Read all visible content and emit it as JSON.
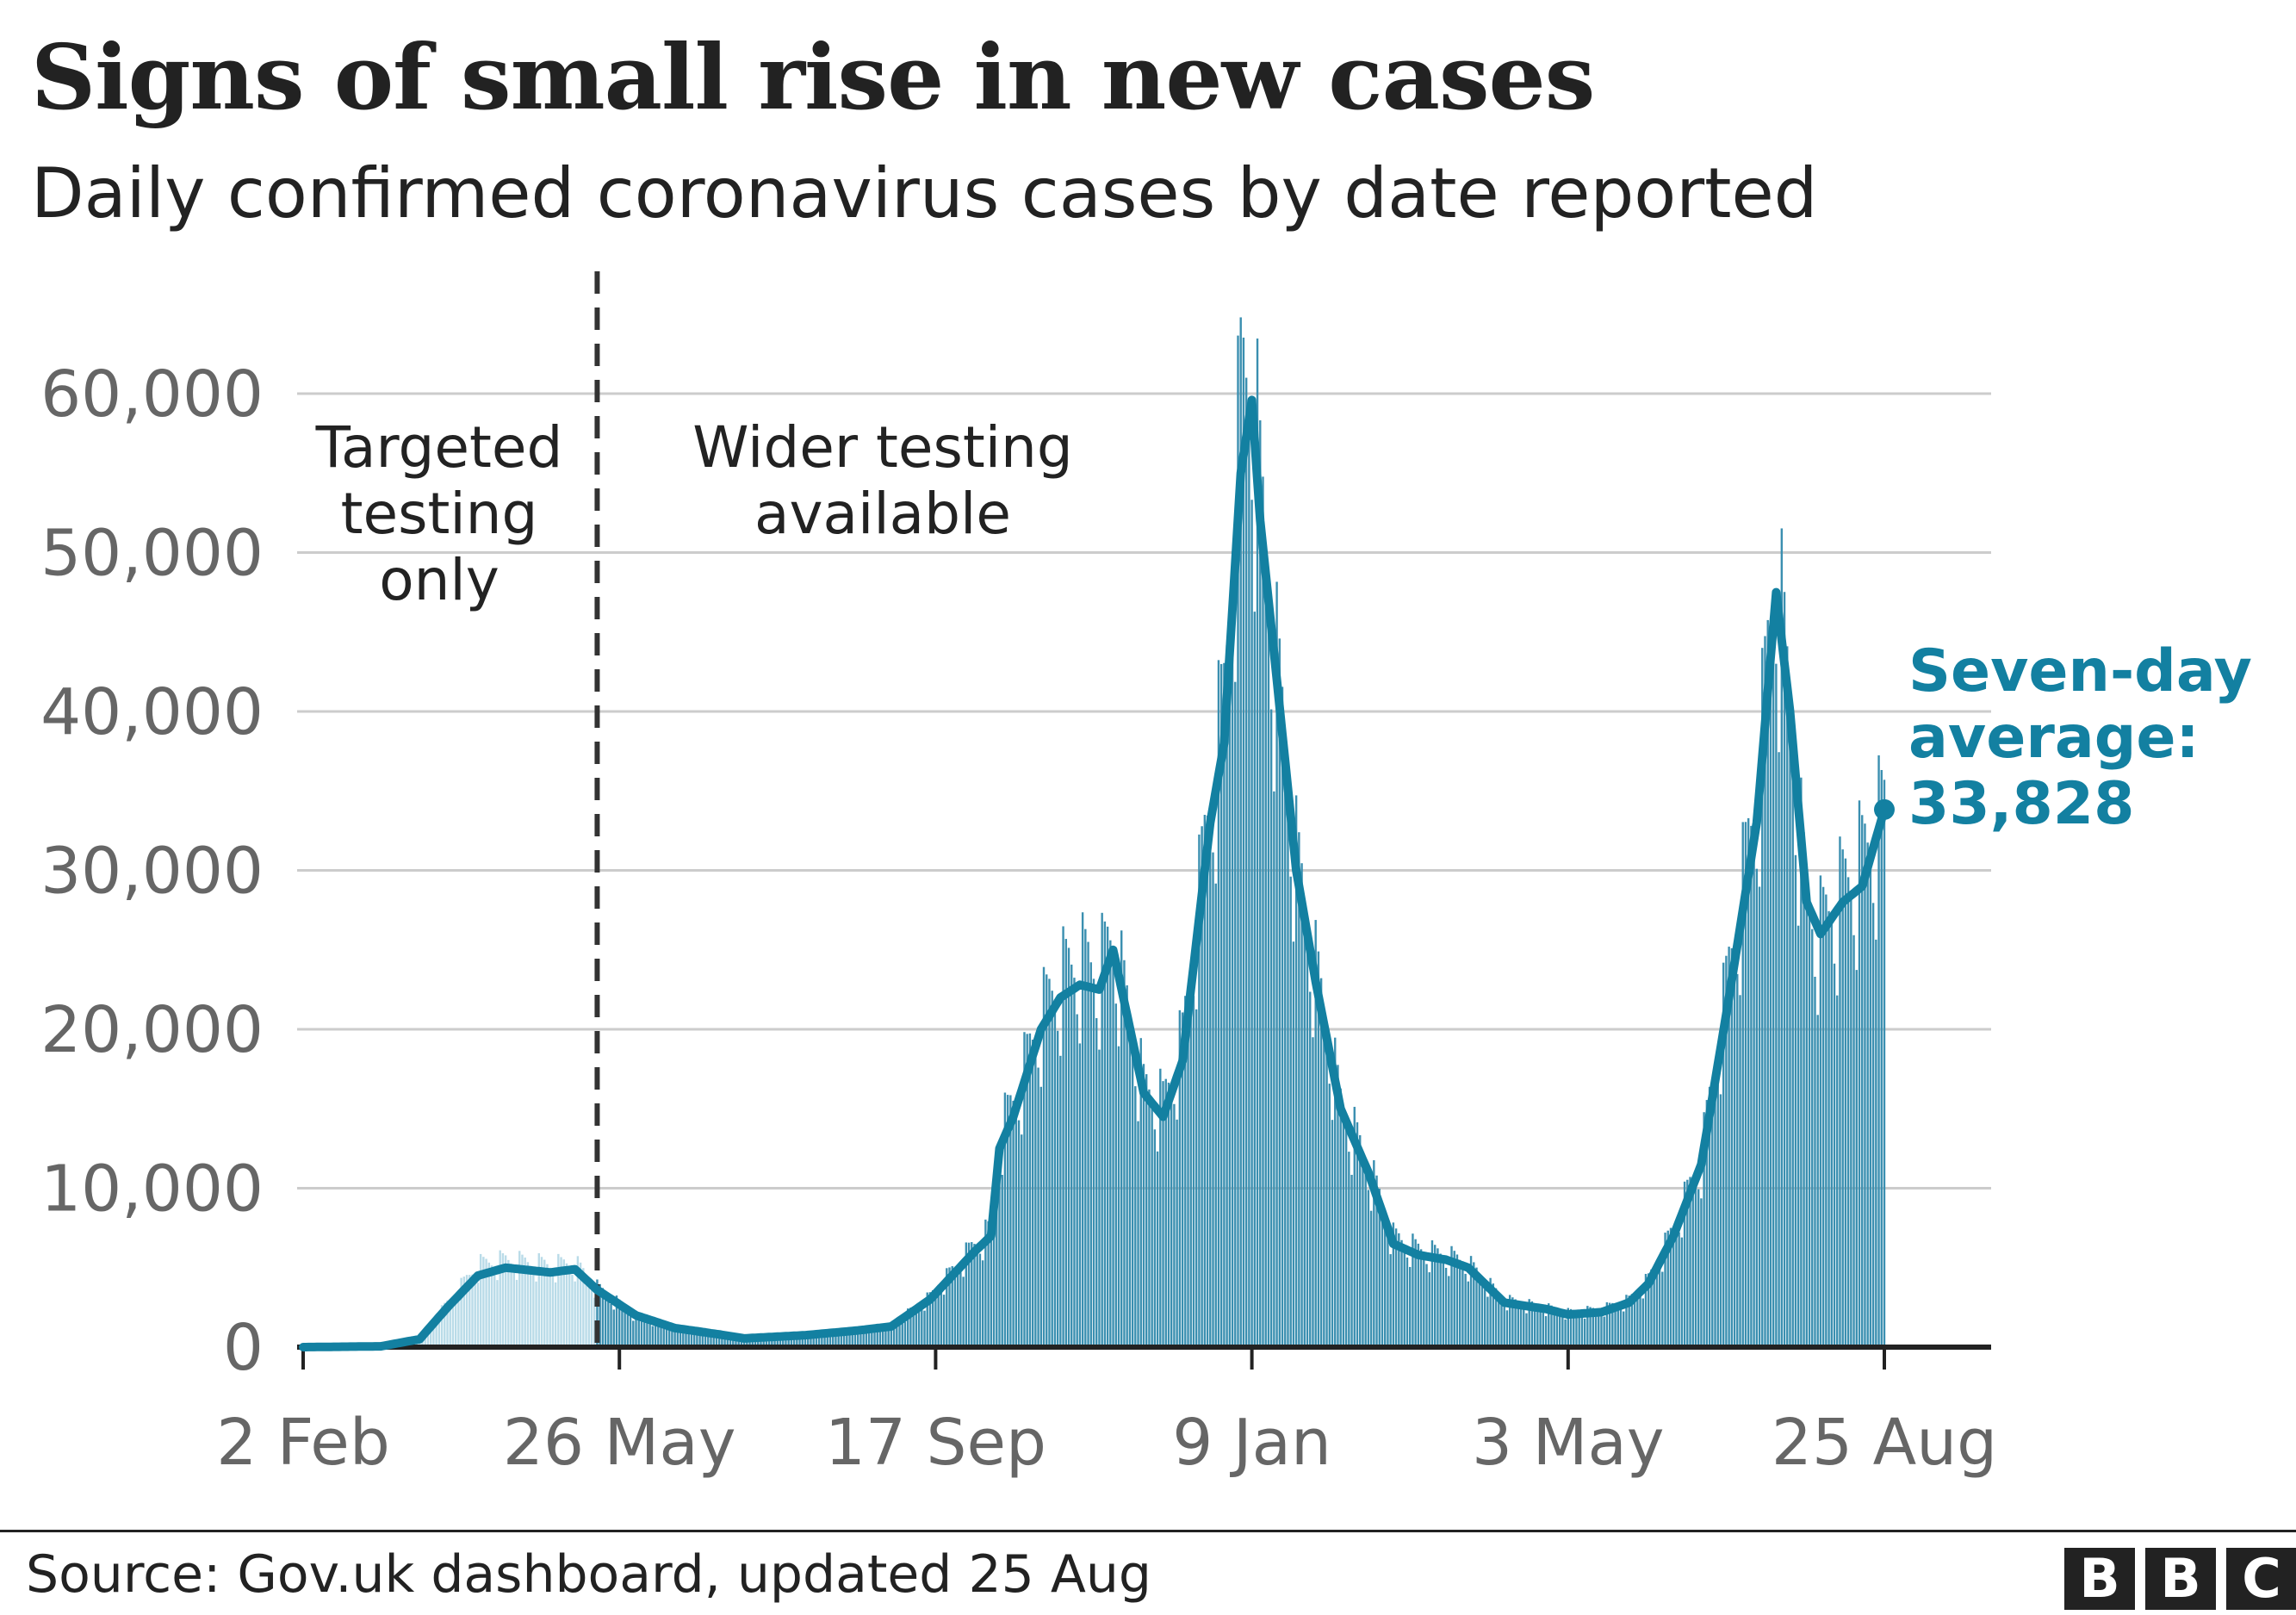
{
  "header": {
    "title": "Signs of small rise in new cases",
    "subtitle": "Daily confirmed coronavirus cases by date reported"
  },
  "footer": {
    "source": "Source: Gov.uk dashboard, updated 25 Aug",
    "logo_letters": [
      "B",
      "B",
      "C"
    ]
  },
  "chart_data": {
    "type": "bar",
    "title": "Signs of small rise in new cases",
    "subtitle": "Daily confirmed coronavirus cases by date reported",
    "xlabel": "",
    "ylabel": "",
    "x_range": [
      "2020-02-02",
      "2021-08-25"
    ],
    "ylim": [
      0,
      60000
    ],
    "grid": true,
    "y_ticks": [
      0,
      10000,
      20000,
      30000,
      40000,
      50000,
      60000
    ],
    "y_tick_labels": [
      "0",
      "10,000",
      "20,000",
      "30,000",
      "40,000",
      "50,000",
      "60,000"
    ],
    "x_ticks": [
      "2020-02-02",
      "2020-05-26",
      "2020-09-17",
      "2021-01-09",
      "2021-05-03",
      "2021-08-25"
    ],
    "x_tick_labels": [
      "2 Feb",
      "26 May",
      "17 Sep",
      "9 Jan",
      "3 May",
      "25 Aug"
    ],
    "colors": {
      "line": "#1380A1",
      "bars": "#3a8fb0",
      "bars_before_divider": "#b9dbe8",
      "grid": "#cccccc",
      "axis": "#222222",
      "tick_text": "#666666"
    },
    "divider": {
      "date": "2020-05-18",
      "style": "dashed",
      "left_label": [
        "Targeted",
        "testing",
        "only"
      ],
      "right_label": [
        "Wider testing",
        "available"
      ]
    },
    "series": [
      {
        "type": "bar",
        "values_approx_daily": [
          [
            "2020-02-02",
            0
          ],
          [
            "2020-03-01",
            60
          ],
          [
            "2020-03-15",
            600
          ],
          [
            "2020-03-25",
            2800
          ],
          [
            "2020-04-05",
            5200
          ],
          [
            "2020-04-15",
            5500
          ],
          [
            "2020-05-01",
            5200
          ],
          [
            "2020-05-10",
            5300
          ],
          [
            "2020-05-18",
            3800
          ],
          [
            "2020-06-01",
            2000
          ],
          [
            "2020-06-15",
            1300
          ],
          [
            "2020-07-01",
            800
          ],
          [
            "2020-07-10",
            600
          ],
          [
            "2020-08-01",
            800
          ],
          [
            "2020-08-20",
            1100
          ],
          [
            "2020-09-01",
            1400
          ],
          [
            "2020-09-15",
            3200
          ],
          [
            "2020-10-01",
            6500
          ],
          [
            "2020-10-07",
            7500
          ],
          [
            "2020-10-10",
            13500
          ],
          [
            "2020-10-15",
            15500
          ],
          [
            "2020-10-25",
            21000
          ],
          [
            "2020-11-01",
            23500
          ],
          [
            "2020-11-08",
            24500
          ],
          [
            "2020-11-15",
            24000
          ],
          [
            "2020-11-20",
            26000
          ],
          [
            "2020-12-01",
            16500
          ],
          [
            "2020-12-08",
            15500
          ],
          [
            "2020-12-15",
            19500
          ],
          [
            "2020-12-25",
            35000
          ],
          [
            "2020-12-30",
            41000
          ],
          [
            "2021-01-05",
            60000
          ],
          [
            "2021-01-09",
            62000
          ],
          [
            "2021-01-12",
            54000
          ],
          [
            "2021-01-18",
            43000
          ],
          [
            "2021-01-25",
            31000
          ],
          [
            "2021-02-01",
            24000
          ],
          [
            "2021-02-10",
            15500
          ],
          [
            "2021-02-20",
            11500
          ],
          [
            "2021-03-01",
            7000
          ],
          [
            "2021-03-10",
            6200
          ],
          [
            "2021-03-20",
            5800
          ],
          [
            "2021-03-28",
            5300
          ],
          [
            "2021-04-10",
            3000
          ],
          [
            "2021-04-25",
            2500
          ],
          [
            "2021-05-03",
            2200
          ],
          [
            "2021-05-15",
            2400
          ],
          [
            "2021-05-25",
            3000
          ],
          [
            "2021-06-01",
            4300
          ],
          [
            "2021-06-10",
            7500
          ],
          [
            "2021-06-20",
            12000
          ],
          [
            "2021-06-30",
            24000
          ],
          [
            "2021-07-10",
            35000
          ],
          [
            "2021-07-17",
            50000
          ],
          [
            "2021-07-22",
            40000
          ],
          [
            "2021-07-28",
            28000
          ],
          [
            "2021-08-02",
            26500
          ],
          [
            "2021-08-10",
            29000
          ],
          [
            "2021-08-17",
            31000
          ],
          [
            "2021-08-25",
            34000
          ]
        ]
      },
      {
        "type": "line",
        "name": "Seven-day average",
        "points": [
          [
            "2020-02-02",
            0
          ],
          [
            "2020-03-01",
            50
          ],
          [
            "2020-03-15",
            500
          ],
          [
            "2020-03-25",
            2500
          ],
          [
            "2020-04-05",
            4500
          ],
          [
            "2020-04-15",
            5000
          ],
          [
            "2020-05-01",
            4700
          ],
          [
            "2020-05-10",
            4900
          ],
          [
            "2020-05-18",
            3600
          ],
          [
            "2020-06-01",
            2000
          ],
          [
            "2020-06-15",
            1200
          ],
          [
            "2020-07-01",
            800
          ],
          [
            "2020-07-10",
            550
          ],
          [
            "2020-08-01",
            750
          ],
          [
            "2020-08-20",
            1050
          ],
          [
            "2020-09-01",
            1300
          ],
          [
            "2020-09-15",
            3000
          ],
          [
            "2020-10-01",
            6000
          ],
          [
            "2020-10-07",
            7000
          ],
          [
            "2020-10-10",
            12500
          ],
          [
            "2020-10-15",
            14500
          ],
          [
            "2020-10-25",
            20000
          ],
          [
            "2020-11-01",
            22000
          ],
          [
            "2020-11-08",
            22800
          ],
          [
            "2020-11-15",
            22500
          ],
          [
            "2020-11-20",
            25000
          ],
          [
            "2020-12-01",
            16000
          ],
          [
            "2020-12-08",
            14500
          ],
          [
            "2020-12-15",
            18000
          ],
          [
            "2020-12-25",
            33000
          ],
          [
            "2020-12-30",
            38000
          ],
          [
            "2021-01-05",
            55000
          ],
          [
            "2021-01-09",
            59600
          ],
          [
            "2021-01-12",
            52000
          ],
          [
            "2021-01-18",
            42000
          ],
          [
            "2021-01-25",
            30000
          ],
          [
            "2021-02-01",
            23000
          ],
          [
            "2021-02-10",
            15000
          ],
          [
            "2021-02-20",
            11000
          ],
          [
            "2021-03-01",
            6500
          ],
          [
            "2021-03-10",
            5800
          ],
          [
            "2021-03-20",
            5500
          ],
          [
            "2021-03-28",
            5000
          ],
          [
            "2021-04-10",
            2800
          ],
          [
            "2021-04-25",
            2400
          ],
          [
            "2021-05-03",
            2050
          ],
          [
            "2021-05-15",
            2200
          ],
          [
            "2021-05-25",
            2800
          ],
          [
            "2021-06-01",
            4000
          ],
          [
            "2021-06-10",
            7000
          ],
          [
            "2021-06-20",
            11500
          ],
          [
            "2021-06-30",
            22000
          ],
          [
            "2021-07-10",
            33000
          ],
          [
            "2021-07-17",
            47500
          ],
          [
            "2021-07-22",
            40000
          ],
          [
            "2021-07-28",
            28000
          ],
          [
            "2021-08-02",
            26000
          ],
          [
            "2021-08-10",
            28000
          ],
          [
            "2021-08-17",
            29000
          ],
          [
            "2021-08-25",
            33828
          ]
        ]
      }
    ],
    "annotations": {
      "end_label": [
        "Seven-day",
        "average:",
        "33,828"
      ],
      "end_value": 33828
    }
  }
}
